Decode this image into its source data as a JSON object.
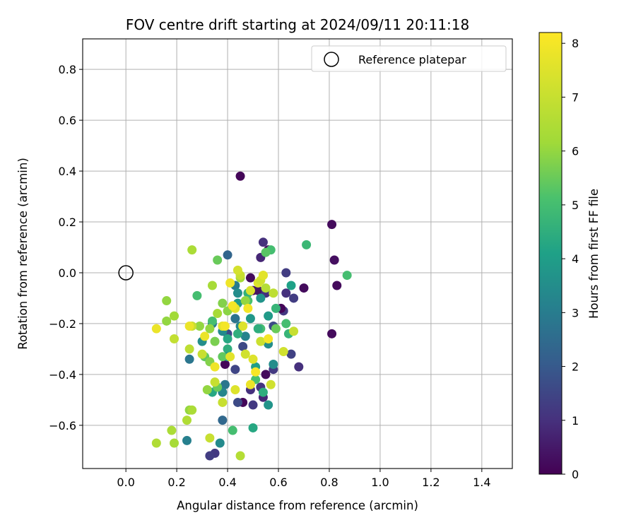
{
  "chart_data": {
    "type": "scatter",
    "title": "FOV centre drift starting at 2024/09/11 20:11:18",
    "xlabel": "Angular distance from reference (arcmin)",
    "ylabel": "Rotation from reference (arcmin)",
    "xlim": [
      -0.17,
      1.52
    ],
    "ylim": [
      -0.77,
      0.92
    ],
    "xticks": [
      "0.0",
      "0.2",
      "0.4",
      "0.6",
      "0.8",
      "1.0",
      "1.2",
      "1.4"
    ],
    "xtick_values": [
      0,
      0.2,
      0.4,
      0.6,
      0.8,
      1.0,
      1.2,
      1.4
    ],
    "yticks": [
      "−0.6",
      "−0.4",
      "−0.2",
      "0.0",
      "0.2",
      "0.4",
      "0.6",
      "0.8"
    ],
    "ytick_values": [
      -0.6,
      -0.4,
      -0.2,
      0,
      0.2,
      0.4,
      0.6,
      0.8
    ],
    "grid": true,
    "legend": {
      "placement": "top-right",
      "entries": [
        "Reference platepar"
      ]
    },
    "reference_point": {
      "x": 0.0,
      "y": 0.0,
      "marker": "open-circle"
    },
    "colorbar": {
      "label": "Hours from first FF file",
      "colormap": "viridis",
      "range": [
        0,
        8.2
      ],
      "ticks": [
        "0",
        "1",
        "2",
        "3",
        "4",
        "5",
        "6",
        "7",
        "8"
      ],
      "tick_values": [
        0,
        1,
        2,
        3,
        4,
        5,
        6,
        7,
        8
      ]
    },
    "points": [
      [
        0.45,
        0.38,
        0.1
      ],
      [
        0.81,
        0.19,
        0.2
      ],
      [
        0.82,
        0.05,
        0.3
      ],
      [
        0.83,
        -0.05,
        0.2
      ],
      [
        0.81,
        -0.24,
        0.2
      ],
      [
        0.7,
        -0.06,
        0.2
      ],
      [
        0.68,
        -0.37,
        1.0
      ],
      [
        0.65,
        -0.32,
        1.4
      ],
      [
        0.66,
        -0.1,
        1.3
      ],
      [
        0.63,
        0.0,
        1.3
      ],
      [
        0.62,
        -0.15,
        1.2
      ],
      [
        0.61,
        -0.14,
        0.1
      ],
      [
        0.63,
        -0.08,
        1.0
      ],
      [
        0.56,
        0.09,
        0.3
      ],
      [
        0.54,
        0.12,
        1.0
      ],
      [
        0.53,
        0.06,
        0.8
      ],
      [
        0.49,
        -0.02,
        0.2
      ],
      [
        0.5,
        -0.07,
        0.2
      ],
      [
        0.52,
        -0.07,
        0.4
      ],
      [
        0.55,
        -0.08,
        1.0
      ],
      [
        0.58,
        -0.21,
        1.6
      ],
      [
        0.58,
        -0.38,
        1.2
      ],
      [
        0.55,
        -0.4,
        0.2
      ],
      [
        0.53,
        -0.45,
        1.1
      ],
      [
        0.54,
        -0.49,
        0.8
      ],
      [
        0.49,
        -0.46,
        1.0
      ],
      [
        0.46,
        -0.51,
        0.1
      ],
      [
        0.5,
        -0.52,
        1.2
      ],
      [
        0.44,
        -0.51,
        1.6
      ],
      [
        0.38,
        -0.58,
        2.4
      ],
      [
        0.35,
        -0.71,
        1.2
      ],
      [
        0.33,
        -0.72,
        1.3
      ],
      [
        0.39,
        -0.36,
        0.1
      ],
      [
        0.43,
        -0.38,
        1.5
      ],
      [
        0.46,
        -0.29,
        1.6
      ],
      [
        0.4,
        0.07,
        2.3
      ],
      [
        0.43,
        -0.05,
        3.0
      ],
      [
        0.4,
        -0.24,
        1.6
      ],
      [
        0.39,
        -0.44,
        2.8
      ],
      [
        0.38,
        -0.47,
        3.3
      ],
      [
        0.37,
        -0.67,
        3.4
      ],
      [
        0.24,
        -0.66,
        3.1
      ],
      [
        0.25,
        -0.34,
        2.8
      ],
      [
        0.3,
        -0.27,
        3.5
      ],
      [
        0.34,
        -0.2,
        3.0
      ],
      [
        0.38,
        -0.23,
        3.4
      ],
      [
        0.43,
        -0.18,
        2.7
      ],
      [
        0.45,
        -0.21,
        3.3
      ],
      [
        0.47,
        -0.25,
        3.2
      ],
      [
        0.49,
        -0.18,
        3.8
      ],
      [
        0.53,
        -0.1,
        3.7
      ],
      [
        0.56,
        -0.17,
        3.9
      ],
      [
        0.56,
        -0.28,
        3.5
      ],
      [
        0.58,
        -0.36,
        3.5
      ],
      [
        0.56,
        -0.52,
        3.7
      ],
      [
        0.54,
        -0.47,
        4.5
      ],
      [
        0.51,
        -0.37,
        4.0
      ],
      [
        0.51,
        -0.42,
        5.1
      ],
      [
        0.53,
        -0.22,
        5.0
      ],
      [
        0.52,
        -0.22,
        4.5
      ],
      [
        0.44,
        -0.24,
        4.5
      ],
      [
        0.4,
        -0.3,
        4.5
      ],
      [
        0.4,
        -0.33,
        3.8
      ],
      [
        0.34,
        -0.47,
        4.3
      ],
      [
        0.36,
        -0.45,
        5.5
      ],
      [
        0.42,
        -0.62,
        5.0
      ],
      [
        0.5,
        -0.61,
        4.3
      ],
      [
        0.57,
        0.09,
        5.0
      ],
      [
        0.55,
        0.08,
        5.3
      ],
      [
        0.63,
        -0.2,
        5.0
      ],
      [
        0.64,
        -0.24,
        4.7
      ],
      [
        0.65,
        -0.05,
        4.1
      ],
      [
        0.71,
        0.11,
        4.8
      ],
      [
        0.87,
        -0.01,
        5.0
      ],
      [
        0.59,
        -0.14,
        4.7
      ],
      [
        0.59,
        -0.22,
        5.5
      ],
      [
        0.48,
        -0.08,
        4.6
      ],
      [
        0.44,
        -0.08,
        3.5
      ],
      [
        0.44,
        -0.12,
        3.9
      ],
      [
        0.48,
        -0.11,
        5.1
      ],
      [
        0.4,
        -0.26,
        4.3
      ],
      [
        0.38,
        -0.33,
        5.4
      ],
      [
        0.35,
        -0.27,
        5.7
      ],
      [
        0.34,
        -0.19,
        5.0
      ],
      [
        0.31,
        -0.33,
        5.4
      ],
      [
        0.33,
        -0.35,
        5.8
      ],
      [
        0.28,
        -0.09,
        5.0
      ],
      [
        0.36,
        0.05,
        5.5
      ],
      [
        0.38,
        -0.12,
        5.8
      ],
      [
        0.4,
        -0.15,
        5.9
      ],
      [
        0.36,
        -0.16,
        6.3
      ],
      [
        0.33,
        -0.22,
        6.0
      ],
      [
        0.29,
        -0.21,
        6.0
      ],
      [
        0.32,
        -0.46,
        6.0
      ],
      [
        0.25,
        -0.54,
        6.0
      ],
      [
        0.19,
        -0.67,
        6.3
      ],
      [
        0.16,
        -0.19,
        6.0
      ],
      [
        0.16,
        -0.11,
        6.0
      ],
      [
        0.19,
        -0.17,
        6.2
      ],
      [
        0.26,
        0.09,
        6.4
      ],
      [
        0.34,
        -0.05,
        6.3
      ],
      [
        0.45,
        -0.02,
        6.3
      ],
      [
        0.47,
        -0.11,
        6.0
      ],
      [
        0.54,
        -0.01,
        6.7
      ],
      [
        0.55,
        -0.06,
        6.6
      ],
      [
        0.58,
        -0.08,
        6.8
      ],
      [
        0.62,
        -0.31,
        7.2
      ],
      [
        0.66,
        -0.23,
        7.0
      ],
      [
        0.57,
        -0.44,
        7.2
      ],
      [
        0.53,
        -0.27,
        7.1
      ],
      [
        0.45,
        -0.72,
        6.6
      ],
      [
        0.33,
        -0.65,
        7.0
      ],
      [
        0.18,
        -0.62,
        6.4
      ],
      [
        0.12,
        -0.67,
        6.5
      ],
      [
        0.24,
        -0.58,
        6.5
      ],
      [
        0.26,
        -0.54,
        6.4
      ],
      [
        0.25,
        -0.3,
        6.8
      ],
      [
        0.19,
        -0.26,
        6.9
      ],
      [
        0.26,
        -0.21,
        7.0
      ],
      [
        0.3,
        -0.32,
        7.0
      ],
      [
        0.35,
        -0.43,
        7.0
      ],
      [
        0.38,
        -0.51,
        7.0
      ],
      [
        0.47,
        -0.32,
        7.2
      ],
      [
        0.43,
        -0.46,
        7.5
      ],
      [
        0.49,
        -0.44,
        7.8
      ],
      [
        0.5,
        -0.34,
        7.5
      ],
      [
        0.41,
        -0.33,
        7.6
      ],
      [
        0.38,
        -0.21,
        7.6
      ],
      [
        0.43,
        -0.14,
        7.6
      ],
      [
        0.46,
        -0.21,
        7.5
      ],
      [
        0.49,
        -0.07,
        7.4
      ],
      [
        0.52,
        -0.04,
        7.5
      ],
      [
        0.45,
        -0.01,
        7.0
      ],
      [
        0.44,
        0.01,
        7.3
      ],
      [
        0.53,
        -0.03,
        7.2
      ],
      [
        0.54,
        -0.01,
        7.6
      ],
      [
        0.12,
        -0.22,
        7.8
      ],
      [
        0.25,
        -0.21,
        7.8
      ],
      [
        0.31,
        -0.25,
        7.8
      ],
      [
        0.35,
        -0.37,
        7.9
      ],
      [
        0.39,
        -0.21,
        8.0
      ],
      [
        0.41,
        -0.04,
        7.9
      ],
      [
        0.42,
        -0.13,
        8.0
      ],
      [
        0.48,
        -0.14,
        8.0
      ],
      [
        0.51,
        -0.39,
        8.1
      ],
      [
        0.56,
        -0.26,
        8.0
      ]
    ]
  }
}
